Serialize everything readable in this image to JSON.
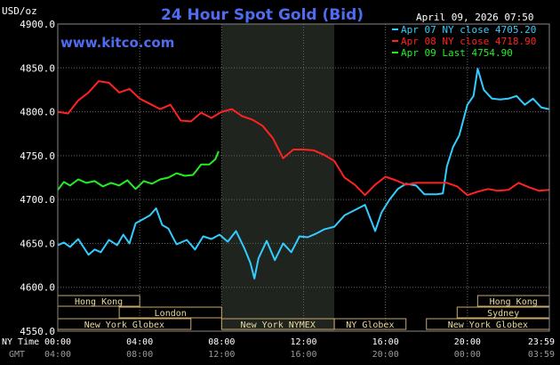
{
  "chart_data": {
    "type": "line",
    "title": "24 Hour Spot Gold (Bid)",
    "site": "www.kitco.com",
    "timestamp": "April 09, 2026 07:50",
    "ylabel": "USD/oz",
    "ylim": [
      4550,
      4900
    ],
    "y_ticks": [
      "4550.0",
      "4600.0",
      "4650.0",
      "4700.0",
      "4750.0",
      "4800.0",
      "4850.0",
      "4900.0"
    ],
    "x_ticks_ny": [
      "00:00",
      "04:00",
      "08:00",
      "12:00",
      "16:00",
      "20:00",
      "23:59"
    ],
    "x_ticks_gmt": [
      "04:00",
      "08:00",
      "12:00",
      "16:00",
      "20:00",
      "00:00",
      "03:59"
    ],
    "x_row_label_ny": "NY Time",
    "x_row_label_gmt": "GMT",
    "shaded_region": [
      8.0,
      13.5
    ],
    "legend": [
      {
        "label": "Apr 07 NY close 4705.20",
        "color": "#33ccff"
      },
      {
        "label": "Apr 08 NY close 4718.90",
        "color": "#ff2222"
      },
      {
        "label": "Apr 09 Last 4754.90",
        "color": "#22ee22"
      }
    ],
    "series": [
      {
        "color": "#33ccff",
        "x": [
          0,
          0.3,
          0.6,
          1.0,
          1.5,
          1.8,
          2.1,
          2.5,
          2.9,
          3.2,
          3.5,
          3.8,
          4.2,
          4.5,
          4.8,
          5.1,
          5.4,
          5.8,
          6.3,
          6.7,
          7.1,
          7.5,
          7.9,
          8.3,
          8.7,
          9.1,
          9.4,
          9.6,
          9.8,
          10.2,
          10.6,
          11.0,
          11.4,
          11.8,
          12.2,
          12.6,
          13.0,
          13.5,
          14.0,
          14.5,
          15.0,
          15.5,
          15.8,
          16.2,
          16.6,
          17.0,
          17.5,
          17.9,
          18.1,
          18.3,
          18.5,
          18.8,
          19.0,
          19.3,
          19.6,
          20.0,
          20.3,
          20.5,
          20.8,
          21.2,
          21.6,
          22.0,
          22.4,
          22.8,
          23.2,
          23.6,
          23.98
        ],
        "values": [
          4648,
          4651,
          4646,
          4655,
          4637,
          4643,
          4640,
          4654,
          4648,
          4660,
          4650,
          4673,
          4678,
          4682,
          4690,
          4671,
          4667,
          4649,
          4654,
          4643,
          4658,
          4655,
          4660,
          4652,
          4664,
          4645,
          4628,
          4610,
          4633,
          4653,
          4631,
          4650,
          4640,
          4658,
          4657,
          4661,
          4666,
          4669,
          4682,
          4688,
          4694,
          4664,
          4685,
          4700,
          4712,
          4718,
          4716,
          4706,
          4706,
          4706,
          4706,
          4707,
          4738,
          4760,
          4773,
          4808,
          4818,
          4849,
          4825,
          4815,
          4814,
          4815,
          4818,
          4808,
          4815,
          4805,
          4803
        ]
      },
      {
        "color": "#ff2222",
        "x": [
          0,
          0.5,
          1.0,
          1.5,
          2.0,
          2.5,
          3.0,
          3.5,
          4.0,
          4.5,
          5.0,
          5.5,
          6.0,
          6.5,
          7.0,
          7.5,
          8.0,
          8.5,
          9.0,
          9.5,
          10.0,
          10.5,
          11.0,
          11.5,
          12.0,
          12.5,
          13.0,
          13.5,
          14.0,
          14.5,
          15.0,
          15.5,
          16.0,
          16.5,
          17.0,
          17.5,
          18.0,
          18.5,
          19.0,
          19.5,
          20.0,
          20.5,
          21.0,
          21.5,
          22.0,
          22.5,
          23.0,
          23.5,
          23.98
        ],
        "values": [
          4800,
          4798,
          4813,
          4822,
          4835,
          4833,
          4822,
          4826,
          4815,
          4809,
          4803,
          4808,
          4790,
          4789,
          4799,
          4793,
          4800,
          4803,
          4795,
          4791,
          4784,
          4770,
          4747,
          4757,
          4757,
          4756,
          4751,
          4744,
          4725,
          4717,
          4705,
          4717,
          4726,
          4722,
          4717,
          4719,
          4719,
          4719,
          4719,
          4715,
          4705,
          4709,
          4712,
          4710,
          4711,
          4719,
          4714,
          4710,
          4711
        ]
      },
      {
        "color": "#22ee22",
        "x": [
          0,
          0.3,
          0.6,
          1.0,
          1.4,
          1.8,
          2.2,
          2.6,
          3.0,
          3.4,
          3.8,
          4.2,
          4.6,
          5.0,
          5.4,
          5.8,
          6.2,
          6.6,
          7.0,
          7.4,
          7.7,
          7.85
        ],
        "values": [
          4711,
          4720,
          4716,
          4723,
          4719,
          4721,
          4715,
          4719,
          4716,
          4722,
          4712,
          4721,
          4718,
          4723,
          4725,
          4730,
          4727,
          4728,
          4740,
          4740,
          4746,
          4755
        ]
      }
    ]
  },
  "sessions": [
    {
      "label": "Hong Kong",
      "start": 0.0,
      "end": 4.0,
      "row": 0
    },
    {
      "label": "London",
      "start": 3.0,
      "end": 8.0,
      "row": 1
    },
    {
      "label": "New York Globex",
      "start": 0.0,
      "end": 6.5,
      "row": 2
    },
    {
      "label": "New York NYMEX",
      "start": 8.0,
      "end": 13.5,
      "row": 2
    },
    {
      "label": "NY Globex",
      "start": 13.5,
      "end": 17.0,
      "row": 2
    },
    {
      "label": "Hong Kong",
      "start": 20.5,
      "end": 24.0,
      "row": 0
    },
    {
      "label": "Sydney",
      "start": 19.5,
      "end": 24.0,
      "row": 1
    },
    {
      "label": "New York Globex",
      "start": 18.0,
      "end": 24.0,
      "row": 2
    }
  ]
}
